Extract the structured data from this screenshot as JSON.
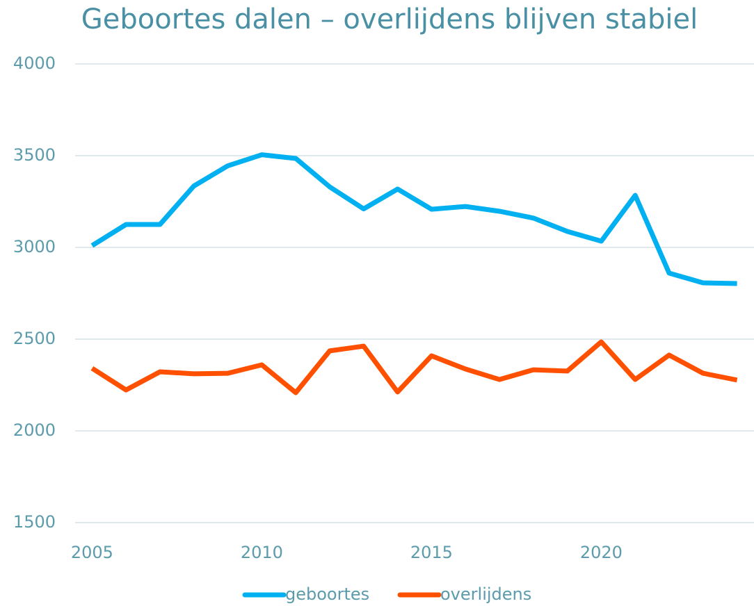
{
  "chart_data": {
    "type": "line",
    "title": "Geboortes dalen – overlijdens blijven stabiel",
    "x": [
      2005,
      2006,
      2007,
      2008,
      2009,
      2010,
      2011,
      2012,
      2013,
      2014,
      2015,
      2016,
      2017,
      2018,
      2019,
      2020,
      2021,
      2022,
      2023,
      2024
    ],
    "series": [
      {
        "name": "geboortes",
        "color": "#00b0f0",
        "values": [
          3010,
          3125,
          3125,
          3335,
          3445,
          3505,
          3485,
          3330,
          3210,
          3318,
          3208,
          3223,
          3197,
          3160,
          3087,
          3034,
          3284,
          2860,
          2807,
          2803
        ]
      },
      {
        "name": "overlijdens",
        "color": "#ff5000",
        "values": [
          2341,
          2223,
          2322,
          2311,
          2314,
          2360,
          2208,
          2436,
          2462,
          2212,
          2409,
          2337,
          2280,
          2333,
          2326,
          2485,
          2280,
          2413,
          2314,
          2277
        ]
      }
    ],
    "xlim": [
      2004.5,
      2024.5
    ],
    "xticks": [
      2005,
      2010,
      2015,
      2020
    ],
    "ylim": [
      1500,
      4000
    ],
    "yticks": [
      1500,
      2000,
      2500,
      3000,
      3500,
      4000
    ],
    "grid": true,
    "legend": "bottom"
  }
}
